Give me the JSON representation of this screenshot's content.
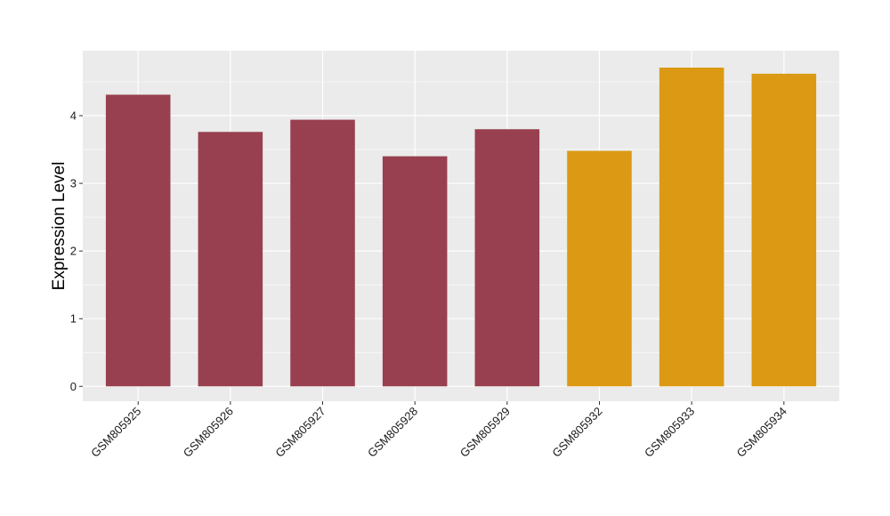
{
  "chart_data": {
    "type": "bar",
    "title": "",
    "xlabel": "",
    "ylabel": "Expression Level",
    "categories": [
      "GSM805925",
      "GSM805926",
      "GSM805927",
      "GSM805928",
      "GSM805929",
      "GSM805932",
      "GSM805933",
      "GSM805934"
    ],
    "values": [
      4.31,
      3.76,
      3.94,
      3.4,
      3.8,
      3.48,
      4.71,
      4.62
    ],
    "bar_colors": [
      "#98404f",
      "#98404f",
      "#98404f",
      "#98404f",
      "#98404f",
      "#dc9913",
      "#dc9913",
      "#dc9913"
    ],
    "y_ticks": [
      0,
      1,
      2,
      3,
      4
    ],
    "ylim": [
      -0.22,
      4.96
    ],
    "grid": true,
    "legend": "none",
    "panel_color": "#ebebeb",
    "grid_color": "#ffffff"
  }
}
